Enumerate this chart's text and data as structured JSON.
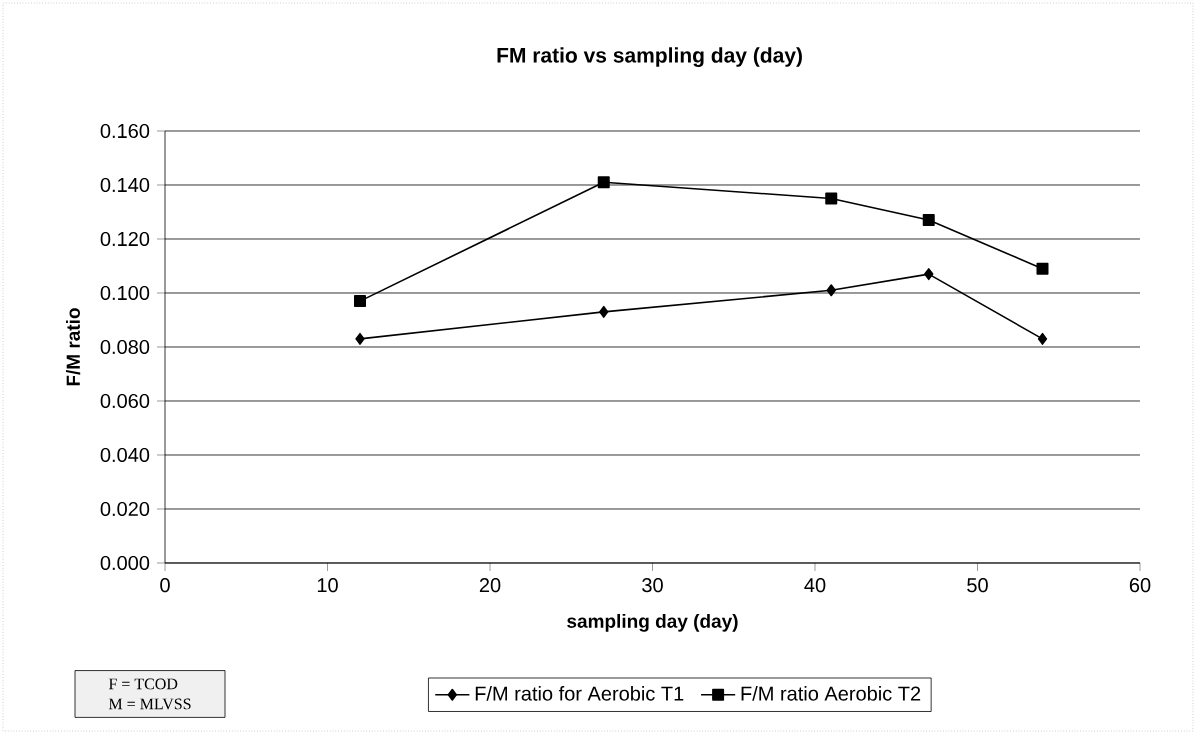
{
  "chart_data": {
    "type": "line",
    "title": "FM ratio vs sampling day (day)",
    "xlabel": "sampling day (day)",
    "ylabel": "F/M ratio",
    "x": [
      12,
      27,
      41,
      47,
      54
    ],
    "series": [
      {
        "name": "F/M ratio for Aerobic T1",
        "color": "#000000",
        "marker": "diamond",
        "values": [
          0.083,
          0.093,
          0.101,
          0.107,
          0.083
        ]
      },
      {
        "name": "F/M ratio Aerobic T2",
        "color": "#000000",
        "marker": "square",
        "values": [
          0.097,
          0.141,
          0.135,
          0.127,
          0.109
        ]
      }
    ],
    "xlim": [
      0,
      60
    ],
    "xticks": [
      0,
      10,
      20,
      30,
      40,
      50,
      60
    ],
    "ylim": [
      0,
      0.16
    ],
    "yticks": [
      {
        "value": 0,
        "label": "0.000"
      },
      {
        "value": 0.02,
        "label": "0.020"
      },
      {
        "value": 0.04,
        "label": "0.040"
      },
      {
        "value": 0.06,
        "label": "0.060"
      },
      {
        "value": 0.08,
        "label": "0.080"
      },
      {
        "value": 0.1,
        "label": "0.100"
      },
      {
        "value": 0.12,
        "label": "0.120"
      },
      {
        "value": 0.14,
        "label": "0.140"
      },
      {
        "value": 0.16,
        "label": "0.160"
      }
    ],
    "grid": "y",
    "legend": "bottom",
    "line_style": "solid",
    "annotations": [
      "F = TCOD",
      "M = MLVSS"
    ]
  }
}
